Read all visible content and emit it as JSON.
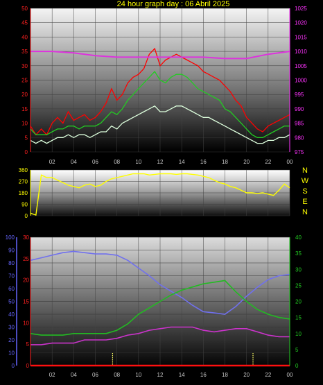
{
  "title": "24 hour graph day : 06 Abril 2025",
  "x_tick_labels": [
    "02",
    "04",
    "06",
    "08",
    "10",
    "12",
    "14",
    "16",
    "18",
    "20",
    "22",
    "00"
  ],
  "chart_data": [
    {
      "type": "line",
      "name": "wind-pressure",
      "left_axis": {
        "ticks": [
          "0",
          "5",
          "10",
          "15",
          "20",
          "25",
          "30",
          "35",
          "40",
          "45",
          "50"
        ],
        "ylim": [
          0,
          50
        ],
        "color": "#ff2020"
      },
      "right_axis": {
        "ticks": [
          "975",
          "980",
          "985",
          "990",
          "995",
          "1000",
          "1005",
          "1010",
          "1015",
          "1020",
          "1025"
        ],
        "ylim": [
          975,
          1025
        ],
        "color": "#ff33ff"
      },
      "series": [
        {
          "key": "gust",
          "color": "#ff0000",
          "axis": "left",
          "x": [
            0,
            0.5,
            1,
            1.5,
            2,
            2.5,
            3,
            3.5,
            4,
            4.5,
            5,
            5.5,
            6,
            6.5,
            7,
            7.5,
            8,
            8.5,
            9,
            9.5,
            10,
            10.5,
            11,
            11.5,
            12,
            12.5,
            13,
            13.5,
            14,
            14.5,
            15,
            15.5,
            16,
            16.5,
            17,
            17.5,
            18,
            18.5,
            19,
            19.5,
            20,
            20.5,
            21,
            21.5,
            22,
            22.5,
            23,
            23.5,
            24
          ],
          "values": [
            9,
            6,
            8,
            6,
            10,
            12,
            10,
            14,
            11,
            12,
            13,
            11,
            12,
            14,
            17,
            22,
            18,
            20,
            24,
            26,
            27,
            29,
            34,
            36,
            30,
            32,
            33,
            34,
            33,
            32,
            31,
            30,
            28,
            27,
            26,
            25,
            23,
            21,
            18,
            16,
            12,
            10,
            8,
            7,
            9,
            10,
            11,
            12,
            13
          ]
        },
        {
          "key": "speed",
          "color": "#22cc22",
          "axis": "left",
          "x": [
            0,
            0.5,
            1,
            1.5,
            2,
            2.5,
            3,
            3.5,
            4,
            4.5,
            5,
            5.5,
            6,
            6.5,
            7,
            7.5,
            8,
            8.5,
            9,
            9.5,
            10,
            10.5,
            11,
            11.5,
            12,
            12.5,
            13,
            13.5,
            14,
            14.5,
            15,
            15.5,
            16,
            16.5,
            17,
            17.5,
            18,
            18.5,
            19,
            19.5,
            20,
            20.5,
            21,
            21.5,
            22,
            22.5,
            23,
            23.5,
            24
          ],
          "values": [
            8,
            6,
            6,
            6,
            7,
            8,
            8,
            9,
            9,
            8,
            9,
            9,
            9,
            10,
            12,
            14,
            13,
            15,
            18,
            20,
            22,
            24,
            26,
            28,
            25,
            24,
            26,
            27,
            27,
            26,
            24,
            22,
            21,
            20,
            19,
            18,
            15,
            14,
            12,
            10,
            8,
            6,
            5,
            5,
            6,
            7,
            8,
            9,
            9
          ]
        },
        {
          "key": "average",
          "color": "#ddffdd",
          "axis": "left",
          "x": [
            0,
            0.5,
            1,
            1.5,
            2,
            2.5,
            3,
            3.5,
            4,
            4.5,
            5,
            5.5,
            6,
            6.5,
            7,
            7.5,
            8,
            8.5,
            9,
            9.5,
            10,
            10.5,
            11,
            11.5,
            12,
            12.5,
            13,
            13.5,
            14,
            14.5,
            15,
            15.5,
            16,
            16.5,
            17,
            17.5,
            18,
            18.5,
            19,
            19.5,
            20,
            20.5,
            21,
            21.5,
            22,
            22.5,
            23,
            23.5,
            24
          ],
          "values": [
            4,
            3,
            4,
            3,
            4,
            5,
            5,
            6,
            5,
            6,
            6,
            5,
            6,
            7,
            7,
            9,
            8,
            10,
            11,
            12,
            13,
            14,
            15,
            16,
            14,
            14,
            15,
            16,
            16,
            15,
            14,
            13,
            12,
            12,
            11,
            10,
            9,
            8,
            7,
            6,
            5,
            4,
            3,
            3,
            4,
            4,
            5,
            5,
            6
          ]
        },
        {
          "key": "pressure",
          "color": "#dd33dd",
          "axis": "right",
          "x": [
            0,
            2,
            4,
            6,
            8,
            10,
            12,
            14,
            16,
            18,
            20,
            22,
            24
          ],
          "values": [
            1010,
            1010,
            1009.5,
            1008.5,
            1008,
            1008,
            1008,
            1008,
            1008,
            1007.5,
            1007.5,
            1009,
            1010
          ]
        }
      ]
    },
    {
      "type": "line",
      "name": "wind-direction",
      "left_axis": {
        "ticks": [
          "0",
          "90",
          "180",
          "270",
          "360"
        ],
        "ylim": [
          0,
          360
        ],
        "color": "#ffff00"
      },
      "cardinal_labels": [
        "N",
        "W",
        "S",
        "E",
        "N"
      ],
      "series": [
        {
          "key": "direction",
          "color": "#ffff00",
          "x": [
            0,
            0.5,
            1,
            1.5,
            2,
            2.5,
            3,
            3.5,
            4,
            4.5,
            5,
            5.5,
            6,
            6.5,
            7,
            7.5,
            8,
            8.5,
            9,
            9.5,
            10,
            10.5,
            11,
            11.5,
            12,
            12.5,
            13,
            13.5,
            14,
            14.5,
            15,
            15.5,
            16,
            16.5,
            17,
            17.5,
            18,
            18.5,
            19,
            19.5,
            20,
            20.5,
            21,
            21.5,
            22,
            22.5,
            23,
            23.5,
            24
          ],
          "values": [
            20,
            5,
            320,
            300,
            300,
            280,
            260,
            240,
            230,
            220,
            240,
            250,
            230,
            240,
            270,
            290,
            300,
            310,
            320,
            330,
            330,
            330,
            320,
            325,
            330,
            330,
            330,
            325,
            330,
            330,
            325,
            320,
            310,
            300,
            280,
            260,
            250,
            230,
            220,
            200,
            180,
            180,
            175,
            180,
            170,
            160,
            200,
            250,
            220
          ]
        }
      ]
    },
    {
      "type": "line",
      "name": "temperature-humidity",
      "axis_humidity": {
        "ticks": [
          "0",
          "10",
          "20",
          "30",
          "40",
          "50",
          "60",
          "70",
          "80",
          "90",
          "100"
        ],
        "ylim": [
          0,
          100
        ],
        "color": "#6666ff"
      },
      "axis_temp": {
        "ticks": [
          "0",
          "5",
          "10",
          "15",
          "20",
          "25",
          "30"
        ],
        "ylim": [
          0,
          30
        ],
        "color": "#ff2020"
      },
      "axis_right": {
        "ticks": [
          "0",
          "5",
          "10",
          "15",
          "20",
          "25",
          "30",
          "35",
          "40"
        ],
        "ylim": [
          0,
          40
        ],
        "color": "#22cc22"
      },
      "series": [
        {
          "key": "humidity",
          "color": "#7070ee",
          "axis": "humidity",
          "x": [
            0,
            1,
            2,
            3,
            4,
            5,
            6,
            7,
            8,
            9,
            10,
            11,
            12,
            13,
            14,
            15,
            16,
            17,
            18,
            19,
            20,
            21,
            22,
            23,
            24
          ],
          "values": [
            82,
            84,
            86,
            88,
            89,
            88,
            87,
            87,
            86,
            82,
            76,
            70,
            63,
            58,
            53,
            47,
            42,
            41,
            40,
            46,
            54,
            61,
            67,
            70,
            71
          ]
        },
        {
          "key": "temperature",
          "color": "#22bb22",
          "axis": "right",
          "x": [
            0,
            1,
            2,
            3,
            4,
            5,
            6,
            7,
            8,
            9,
            10,
            11,
            12,
            13,
            14,
            15,
            16,
            17,
            18,
            19,
            20,
            21,
            22,
            23,
            24
          ],
          "values": [
            10,
            9.5,
            9.5,
            9.5,
            10,
            10,
            10,
            10,
            11,
            13,
            16,
            18,
            20,
            22,
            23.5,
            24.5,
            25.5,
            26,
            26.5,
            23,
            20,
            17.5,
            16,
            15,
            14.5
          ]
        },
        {
          "key": "dewpoint",
          "color": "#cc33cc",
          "axis": "right",
          "x": [
            0,
            1,
            2,
            3,
            4,
            5,
            6,
            7,
            8,
            9,
            10,
            11,
            12,
            13,
            14,
            15,
            16,
            17,
            18,
            19,
            20,
            21,
            22,
            23,
            24
          ],
          "values": [
            6.5,
            6.5,
            7,
            7,
            7,
            8,
            8,
            8,
            8.5,
            9.5,
            10,
            11,
            11.5,
            12,
            12,
            12,
            11,
            10.5,
            11,
            11.5,
            11.5,
            10.5,
            9.5,
            9,
            9
          ]
        },
        {
          "key": "rain",
          "color": "#ff1010",
          "axis": "humidity",
          "x": [
            0,
            24
          ],
          "values": [
            0,
            0
          ]
        }
      ],
      "markers_x": [
        7.6,
        20.6
      ]
    }
  ]
}
